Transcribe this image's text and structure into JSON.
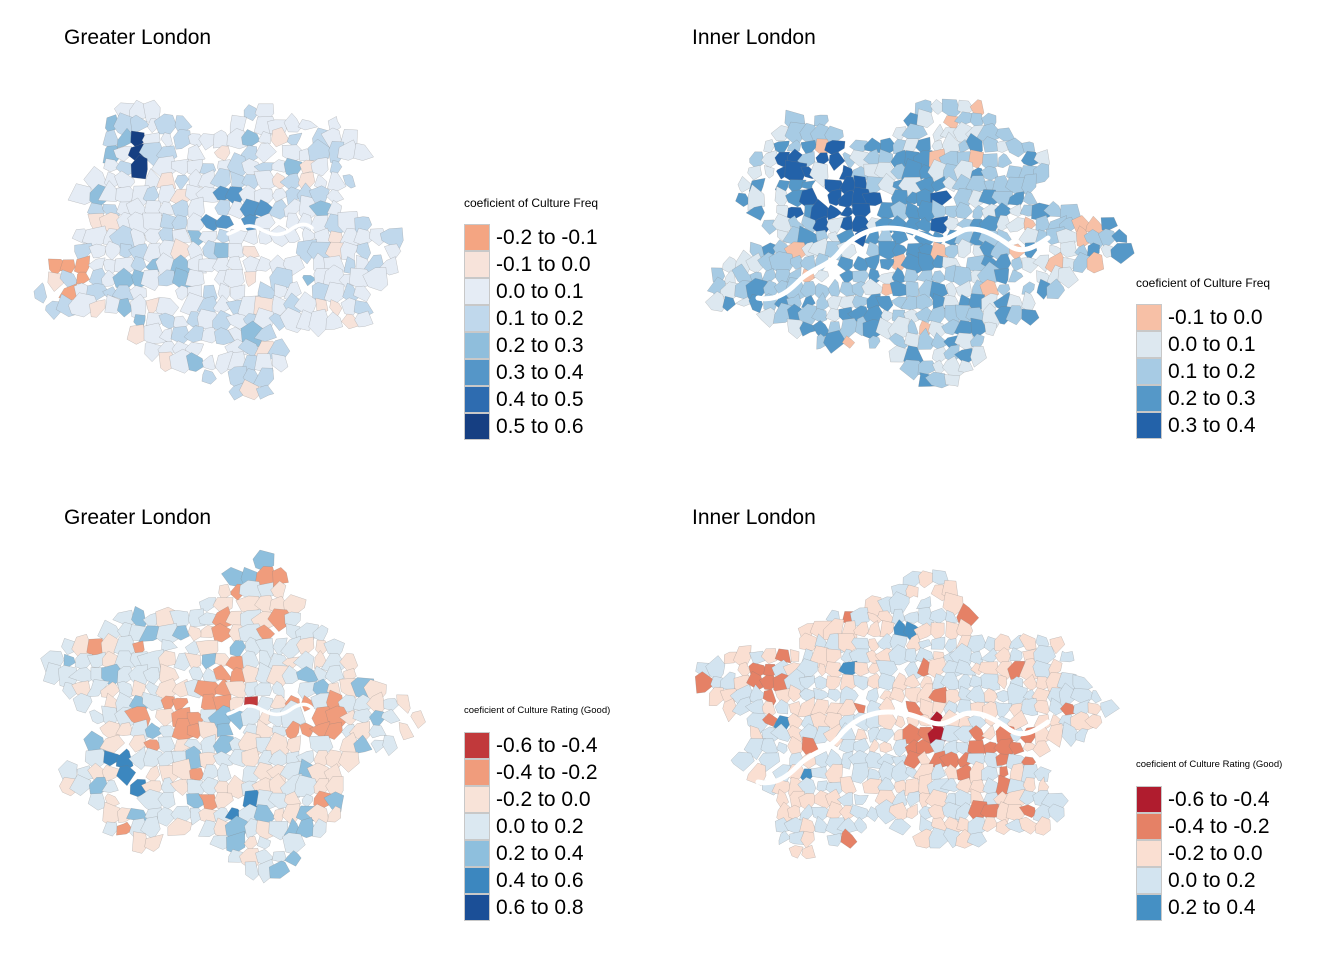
{
  "panels": [
    {
      "title": "Greater London",
      "map_type": "greater",
      "legend": {
        "title": "coeficient of Culture Freq",
        "items": [
          {
            "label": "-0.2 to -0.1",
            "color": "#f4a582"
          },
          {
            "label": "-0.1 to 0.0",
            "color": "#f7e3da"
          },
          {
            "label": "0.0 to 0.1",
            "color": "#e5ecf5"
          },
          {
            "label": "0.1 to 0.2",
            "color": "#c0d8ec"
          },
          {
            "label": "0.2 to 0.3",
            "color": "#8fbedc"
          },
          {
            "label": "0.3 to 0.4",
            "color": "#5596c8"
          },
          {
            "label": "0.4 to 0.5",
            "color": "#2e6cb0"
          },
          {
            "label": "0.5 to 0.6",
            "color": "#163f82"
          }
        ]
      }
    },
    {
      "title": "Inner London",
      "map_type": "inner",
      "legend": {
        "title": "coeficient of Culture Freq",
        "items": [
          {
            "label": "-0.1 to 0.0",
            "color": "#f7c0a6"
          },
          {
            "label": "0.0 to 0.1",
            "color": "#dde8f0"
          },
          {
            "label": "0.1 to 0.2",
            "color": "#a7cbe4"
          },
          {
            "label": "0.2 to 0.3",
            "color": "#5598c8"
          },
          {
            "label": "0.3 to 0.4",
            "color": "#2362a9"
          }
        ]
      }
    },
    {
      "title": "Greater London",
      "map_type": "greater",
      "legend": {
        "title": "coeficient of Culture Rating (Good)",
        "items": [
          {
            "label": "-0.6 to -0.4",
            "color": "#c1393b"
          },
          {
            "label": "-0.4 to -0.2",
            "color": "#f09c7c"
          },
          {
            "label": "-0.2 to 0.0",
            "color": "#f8e3d8"
          },
          {
            "label": "0.0 to 0.2",
            "color": "#dbe8f1"
          },
          {
            "label": "0.2 to 0.4",
            "color": "#8ebfdd"
          },
          {
            "label": "0.4 to 0.6",
            "color": "#3c87bf"
          },
          {
            "label": "0.6 to 0.8",
            "color": "#1b4f97"
          }
        ]
      }
    },
    {
      "title": "Inner London",
      "map_type": "inner",
      "legend": {
        "title": "coeficient of Culture Rating (Good)",
        "items": [
          {
            "label": "-0.6 to -0.4",
            "color": "#b01c2e"
          },
          {
            "label": "-0.4 to -0.2",
            "color": "#e58166"
          },
          {
            "label": "-0.2 to 0.0",
            "color": "#fadfd2"
          },
          {
            "label": "0.0 to 0.2",
            "color": "#d3e4f0"
          },
          {
            "label": "0.2 to 0.4",
            "color": "#4590c4"
          }
        ]
      }
    }
  ]
}
